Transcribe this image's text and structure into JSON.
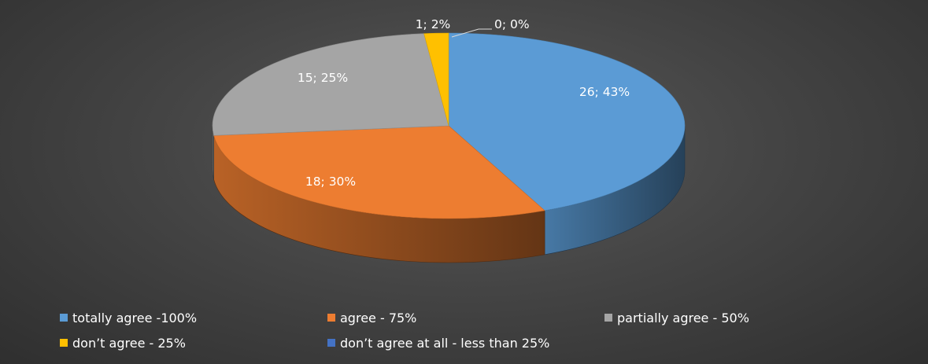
{
  "chart_data": {
    "type": "pie",
    "title": "",
    "three_d": true,
    "legend_position": "bottom",
    "series": [
      {
        "values": [
          26,
          18,
          15,
          1,
          0
        ],
        "percentages": [
          43,
          30,
          25,
          2,
          0
        ]
      }
    ],
    "categories": [
      "totally agree -100%",
      "agree - 75%",
      "partially agree - 50%",
      "don’t agree - 25%",
      "don’t agree at all - less than 25%"
    ],
    "colors": [
      "#5b9bd5",
      "#ed7d31",
      "#a5a5a5",
      "#ffc000",
      "#4472c4"
    ],
    "data_labels": [
      "26; 43%",
      "18; 30%",
      "15; 25%",
      "1; 2%",
      "0; 0%"
    ]
  }
}
